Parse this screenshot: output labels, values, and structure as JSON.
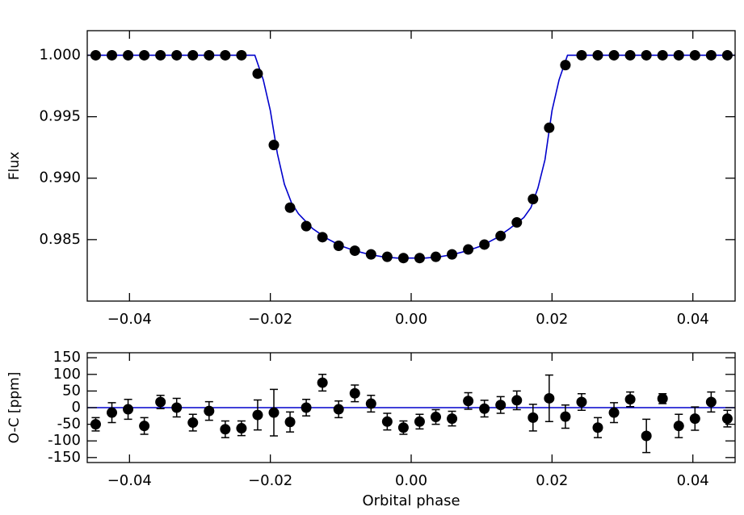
{
  "chart_data": [
    {
      "type": "scatter",
      "y_label": "Flux",
      "x": [
        -0.0448,
        -0.0425,
        -0.0402,
        -0.0379,
        -0.0356,
        -0.0333,
        -0.031,
        -0.0287,
        -0.0264,
        -0.0241,
        -0.0218,
        -0.0195,
        -0.0172,
        -0.0149,
        -0.0126,
        -0.0103,
        -0.008,
        -0.0057,
        -0.0034,
        -0.0011,
        0.0012,
        0.0035,
        0.0058,
        0.0081,
        0.0104,
        0.0127,
        0.015,
        0.0173,
        0.0196,
        0.0219,
        0.0242,
        0.0265,
        0.0288,
        0.0311,
        0.0334,
        0.0357,
        0.038,
        0.0403,
        0.0426,
        0.0449
      ],
      "series": [
        {
          "color": "#000000",
          "values": [
            1.0,
            1.0,
            1.0,
            1.0,
            1.0,
            1.0,
            1.0,
            1.0,
            1.0,
            1.0,
            0.9985,
            0.9927,
            0.9876,
            0.9861,
            0.9852,
            0.9845,
            0.9841,
            0.9838,
            0.9836,
            0.9835,
            0.9835,
            0.9836,
            0.9838,
            0.9842,
            0.9846,
            0.9853,
            0.9864,
            0.9883,
            0.9941,
            0.9992,
            1.0,
            1.0,
            1.0,
            1.0,
            1.0,
            1.0,
            1.0,
            1.0,
            1.0,
            1.0
          ]
        }
      ],
      "model": {
        "color": "#0000cc",
        "x": [
          -0.046,
          -0.0222,
          -0.021,
          -0.02,
          -0.019,
          -0.018,
          -0.017,
          -0.016,
          -0.014,
          -0.012,
          -0.01,
          -0.008,
          -0.006,
          -0.004,
          -0.002,
          0,
          0.002,
          0.004,
          0.006,
          0.008,
          0.01,
          0.012,
          0.014,
          0.016,
          0.017,
          0.018,
          0.019,
          0.02,
          0.021,
          0.0222,
          0.046
        ],
        "values": [
          1.0,
          1.0,
          0.998,
          0.9955,
          0.992,
          0.9895,
          0.988,
          0.9871,
          0.9859,
          0.9851,
          0.9845,
          0.9841,
          0.9838,
          0.9836,
          0.9835,
          0.9835,
          0.9835,
          0.9836,
          0.9838,
          0.9841,
          0.9845,
          0.9851,
          0.9859,
          0.9868,
          0.9876,
          0.9892,
          0.9915,
          0.9955,
          0.998,
          1.0,
          1.0
        ]
      },
      "xlim": [
        -0.046,
        0.046
      ],
      "xticks": [
        {
          "value": -0.04,
          "label": "−0.04"
        },
        {
          "value": -0.02,
          "label": "−0.02"
        },
        {
          "value": 0,
          "label": "0.00"
        },
        0.02,
        0.04
      ],
      "ylim": [
        0.98,
        1.002
      ],
      "yticks": [
        {
          "value": 0.985,
          "label": "0.985"
        },
        {
          "value": 0.99,
          "label": "0.990"
        },
        {
          "value": 0.995,
          "label": "0.995"
        },
        {
          "value": 1,
          "label": "1.000"
        }
      ]
    },
    {
      "type": "scatter",
      "y_label": "O-C [ppm]",
      "x_label": "Orbital phase",
      "x": [
        -0.0448,
        -0.0425,
        -0.0402,
        -0.0379,
        -0.0356,
        -0.0333,
        -0.031,
        -0.0287,
        -0.0264,
        -0.0241,
        -0.0218,
        -0.0195,
        -0.0172,
        -0.0149,
        -0.0126,
        -0.0103,
        -0.008,
        -0.0057,
        -0.0034,
        -0.0011,
        0.0012,
        0.0035,
        0.0058,
        0.0081,
        0.0104,
        0.0127,
        0.015,
        0.0173,
        0.0196,
        0.0219,
        0.0242,
        0.0265,
        0.0288,
        0.0311,
        0.0334,
        0.0357,
        0.038,
        0.0403,
        0.0426,
        0.0449
      ],
      "series": [
        {
          "color": "#000000",
          "values": [
            -50,
            -15,
            -5,
            -55,
            17,
            0,
            -45,
            -10,
            -65,
            -62,
            -22,
            -15,
            -43,
            0,
            75,
            -5,
            43,
            12,
            -42,
            -60,
            -42,
            -28,
            -33,
            20,
            -3,
            8,
            22,
            -30,
            28,
            -27,
            17,
            -60,
            -15,
            25,
            -85,
            27,
            -55,
            -33,
            17,
            -33
          ],
          "errors": [
            20,
            30,
            30,
            25,
            20,
            28,
            25,
            28,
            25,
            22,
            45,
            70,
            30,
            25,
            25,
            25,
            25,
            25,
            25,
            20,
            22,
            22,
            22,
            25,
            25,
            25,
            28,
            40,
            70,
            35,
            25,
            30,
            30,
            22,
            50,
            15,
            35,
            35,
            30,
            25
          ]
        }
      ],
      "model": {
        "color": "#0000cc",
        "x": [
          -0.046,
          0.046
        ],
        "values": [
          0,
          0
        ]
      },
      "xlim": [
        -0.046,
        0.046
      ],
      "xticks": [
        {
          "value": -0.04,
          "label": "−0.04"
        },
        {
          "value": -0.02,
          "label": "−0.02"
        },
        {
          "value": 0,
          "label": "0.00"
        },
        0.02,
        0.04
      ],
      "ylim": [
        -165,
        165
      ],
      "yticks": [
        -150,
        -100,
        -50,
        0,
        50,
        100,
        150
      ]
    }
  ]
}
